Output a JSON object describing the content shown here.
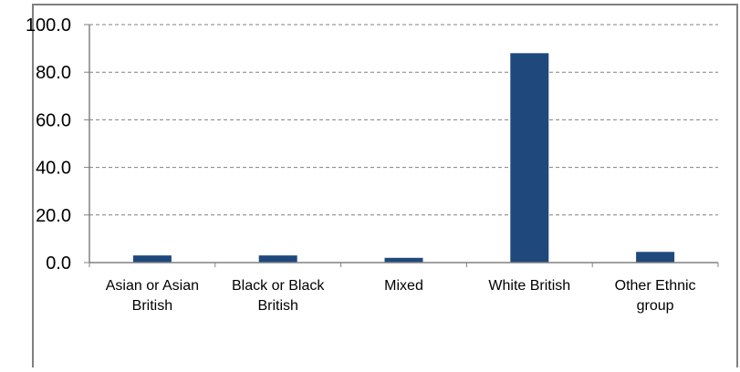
{
  "chart_data": {
    "type": "bar",
    "title": "",
    "xlabel": "",
    "ylabel": "",
    "categories": [
      [
        "Asian or Asian",
        "British"
      ],
      [
        "Black or Black",
        "British"
      ],
      [
        "Mixed"
      ],
      [
        "White British"
      ],
      [
        "Other Ethnic",
        "group"
      ]
    ],
    "values": [
      3.0,
      3.0,
      2.0,
      88.0,
      4.5
    ],
    "ylim": [
      0,
      100
    ],
    "yticks": [
      "0.0",
      "20.0",
      "40.0",
      "60.0",
      "80.0",
      "100.0"
    ],
    "grid": true,
    "legend": "none",
    "colors": {
      "bar": "#1f497d",
      "grid": "#808080",
      "axis": "#808080",
      "frame": "#808080"
    }
  }
}
